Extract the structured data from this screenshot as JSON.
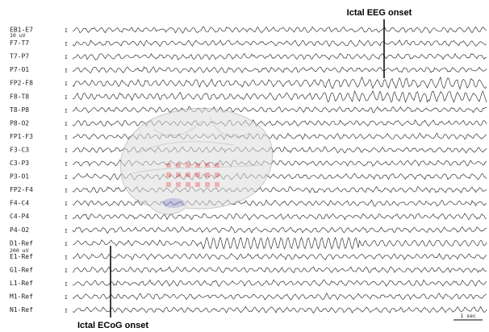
{
  "channels": [
    "EB1-E7",
    "F7-T7",
    "T7-P7",
    "P7-O1",
    "FP2-F8",
    "F8-T8",
    "T8-P8",
    "P8-O2",
    "FP1-F3",
    "F3-C3",
    "C3-P3",
    "P3-O1",
    "FP2-F4",
    "F4-C4",
    "C4-P4",
    "P4-O2",
    "D1-Ref",
    "E1-Ref",
    "G1-Ref",
    "L1-Ref",
    "M1-Ref",
    "N1-Ref"
  ],
  "scales": {
    "eeg": "10 uV",
    "ecog": "200 uV",
    "time": "1 sec"
  },
  "annotations": {
    "eeg_onset": "Ictal EEG onset",
    "ecog_onset": "Ictal ECoG onset"
  }
}
